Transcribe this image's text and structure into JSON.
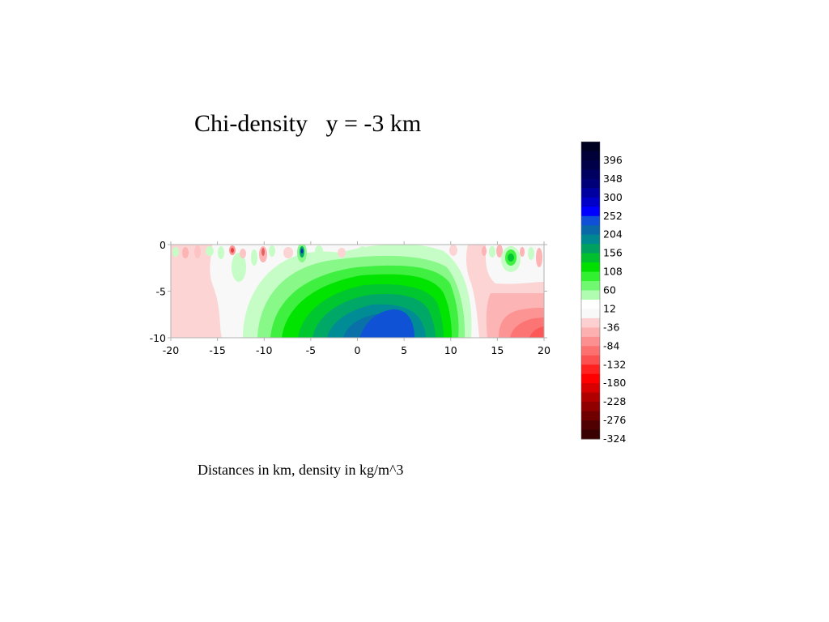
{
  "title": "Chi-density   y = -3 km",
  "caption": "Distances in km, density in kg/m^3",
  "chart_data": {
    "type": "heatmap",
    "title": "Chi-density   y = -3 km",
    "xlabel": "",
    "ylabel": "",
    "xlim": [
      -20,
      20
    ],
    "ylim": [
      -10,
      0
    ],
    "x_ticks": [
      "-20",
      "-15",
      "-10",
      "-5",
      "0",
      "5",
      "10",
      "15",
      "20"
    ],
    "y_ticks": [
      "0",
      "-5",
      "-10"
    ],
    "grid": false,
    "colorbar": {
      "position": "right",
      "tick_labels": [
        "396",
        "348",
        "300",
        "252",
        "204",
        "156",
        "108",
        "60",
        "12",
        "-36",
        "-84",
        "-132",
        "-180",
        "-228",
        "-276",
        "-324"
      ],
      "levels": [
        {
          "value": 420,
          "color": "#000020"
        },
        {
          "value": 396,
          "color": "#000038"
        },
        {
          "value": 372,
          "color": "#000048"
        },
        {
          "value": 348,
          "color": "#000060"
        },
        {
          "value": 324,
          "color": "#000078"
        },
        {
          "value": 300,
          "color": "#0000a0"
        },
        {
          "value": 276,
          "color": "#0000c8"
        },
        {
          "value": 252,
          "color": "#0000ff"
        },
        {
          "value": 228,
          "color": "#1050d8"
        },
        {
          "value": 204,
          "color": "#0868a8"
        },
        {
          "value": 180,
          "color": "#008890"
        },
        {
          "value": 156,
          "color": "#00a060"
        },
        {
          "value": 132,
          "color": "#00c030"
        },
        {
          "value": 108,
          "color": "#00e000"
        },
        {
          "value": 84,
          "color": "#30f030"
        },
        {
          "value": 60,
          "color": "#70f870"
        },
        {
          "value": 36,
          "color": "#b0fcb0"
        },
        {
          "value": 12,
          "color": "#ffffff"
        },
        {
          "value": -12,
          "color": "#f8f8f8"
        },
        {
          "value": -36,
          "color": "#fcd0d0"
        },
        {
          "value": -60,
          "color": "#fcb0b0"
        },
        {
          "value": -84,
          "color": "#fc9090"
        },
        {
          "value": -108,
          "color": "#fc7070"
        },
        {
          "value": -132,
          "color": "#fc5050"
        },
        {
          "value": -156,
          "color": "#ff2020"
        },
        {
          "value": -180,
          "color": "#ff0000"
        },
        {
          "value": -204,
          "color": "#d80000"
        },
        {
          "value": -228,
          "color": "#b00000"
        },
        {
          "value": -252,
          "color": "#900000"
        },
        {
          "value": -276,
          "color": "#700000"
        },
        {
          "value": -300,
          "color": "#500000"
        },
        {
          "value": -324,
          "color": "#380000"
        }
      ]
    },
    "contour_regions": [
      {
        "level": 12,
        "description": "near-zero background",
        "color": "#f8f8f8"
      },
      {
        "level": -36,
        "x_range": [
          -20,
          -14
        ],
        "y_range": [
          -10,
          0
        ]
      },
      {
        "level": 252,
        "x_range": [
          0.5,
          6
        ],
        "y_range": [
          -10,
          -7
        ]
      },
      {
        "level": -108,
        "x_range": [
          16,
          20
        ],
        "y_range": [
          -10,
          -7.5
        ]
      }
    ]
  }
}
